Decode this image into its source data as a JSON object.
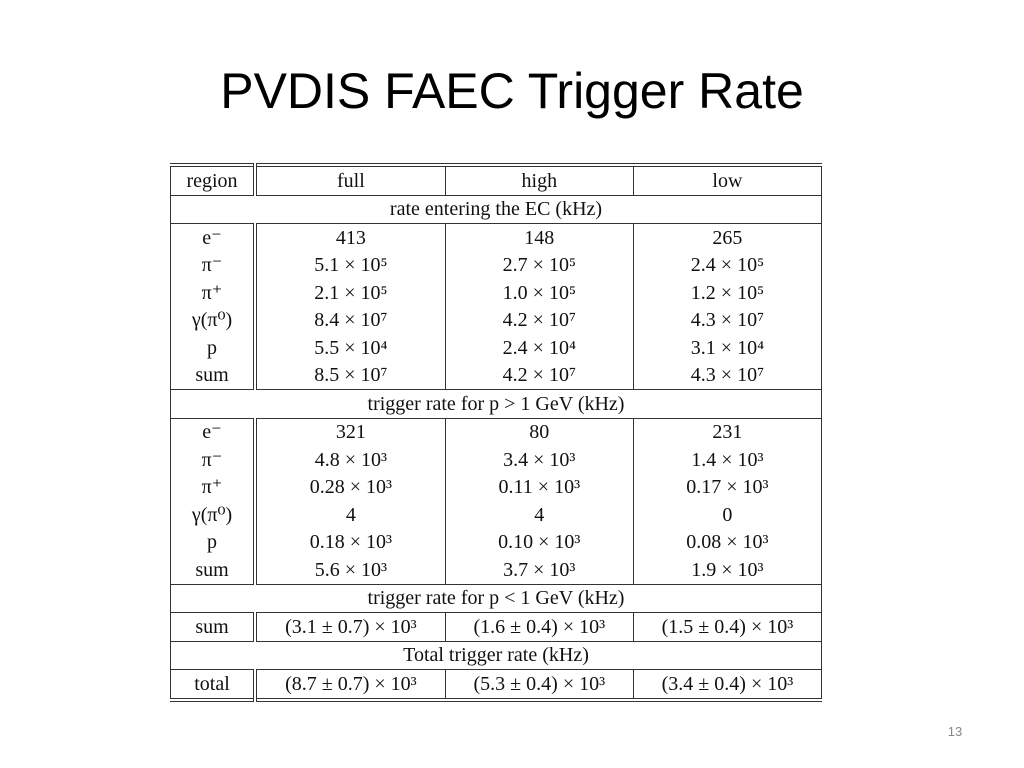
{
  "title": "PVDIS FAEC Trigger Rate",
  "table": {
    "header": [
      "region",
      "full",
      "high",
      "low"
    ],
    "sections": [
      {
        "title": "rate entering the EC (kHz)",
        "rows": [
          [
            "e⁻",
            "413",
            "148",
            "265"
          ],
          [
            "π⁻",
            "5.1 × 10⁵",
            "2.7 × 10⁵",
            "2.4 × 10⁵"
          ],
          [
            "π⁺",
            "2.1 × 10⁵",
            "1.0 × 10⁵",
            "1.2 × 10⁵"
          ],
          [
            "γ(π⁰)",
            "8.4 × 10⁷",
            "4.2 × 10⁷",
            "4.3 × 10⁷"
          ],
          [
            "p",
            "5.5 × 10⁴",
            "2.4 × 10⁴",
            "3.1 × 10⁴"
          ],
          [
            "sum",
            "8.5 × 10⁷",
            "4.2 × 10⁷",
            "4.3 × 10⁷"
          ]
        ]
      },
      {
        "title": "trigger rate for p > 1 GeV (kHz)",
        "rows": [
          [
            "e⁻",
            "321",
            "80",
            "231"
          ],
          [
            "π⁻",
            "4.8 × 10³",
            "3.4 × 10³",
            "1.4 × 10³"
          ],
          [
            "π⁺",
            "0.28 × 10³",
            "0.11 × 10³",
            "0.17 × 10³"
          ],
          [
            "γ(π⁰)",
            "4",
            "4",
            "0"
          ],
          [
            "p",
            "0.18 × 10³",
            "0.10 × 10³",
            "0.08 × 10³"
          ],
          [
            "sum",
            "5.6 × 10³",
            "3.7 × 10³",
            "1.9 × 10³"
          ]
        ]
      },
      {
        "title": "trigger rate for p < 1 GeV (kHz)",
        "rows": [
          [
            "sum",
            "(3.1 ± 0.7) × 10³",
            "(1.6 ± 0.4) × 10³",
            "(1.5 ± 0.4) × 10³"
          ]
        ]
      },
      {
        "title": "Total trigger rate (kHz)",
        "rows": [
          [
            "total",
            "(8.7 ± 0.7) × 10³",
            "(5.3 ± 0.4) × 10³",
            "(3.4 ± 0.4) × 10³"
          ]
        ]
      }
    ]
  },
  "page_number": "13"
}
